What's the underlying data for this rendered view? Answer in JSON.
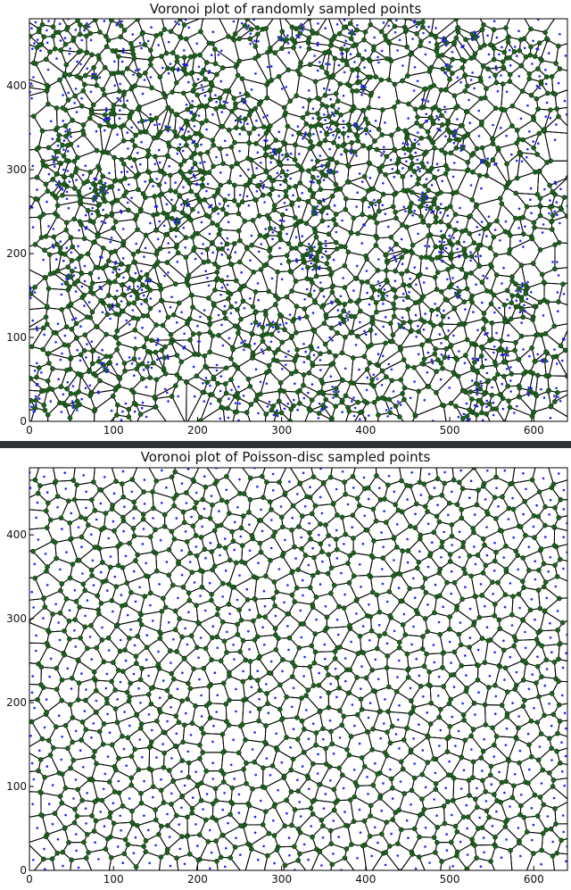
{
  "chart_data": [
    {
      "type": "scatter",
      "title": "Voronoi plot of randomly sampled points",
      "xlabel": "",
      "ylabel": "",
      "xlim": [
        0,
        640
      ],
      "ylim": [
        0,
        480
      ],
      "xticks": [
        0,
        100,
        200,
        300,
        400,
        500,
        600
      ],
      "yticks": [
        0,
        100,
        200,
        300,
        400
      ],
      "sampling": "uniform random",
      "point_count": 1200,
      "point_color": "#1f1fff",
      "vertex_color": "#1f5f1f",
      "edge_color": "#000000",
      "overlay": "voronoi"
    },
    {
      "type": "scatter",
      "title": "Voronoi plot of Poisson-disc sampled points",
      "xlabel": "",
      "ylabel": "",
      "xlim": [
        0,
        640
      ],
      "ylim": [
        0,
        480
      ],
      "xticks": [
        0,
        100,
        200,
        300,
        400,
        500,
        600
      ],
      "yticks": [
        0,
        100,
        200,
        300,
        400
      ],
      "sampling": "Poisson-disc",
      "min_distance": 17,
      "point_color": "#1f1fff",
      "vertex_color": "#1f5f1f",
      "edge_color": "#000000",
      "overlay": "voronoi"
    }
  ]
}
